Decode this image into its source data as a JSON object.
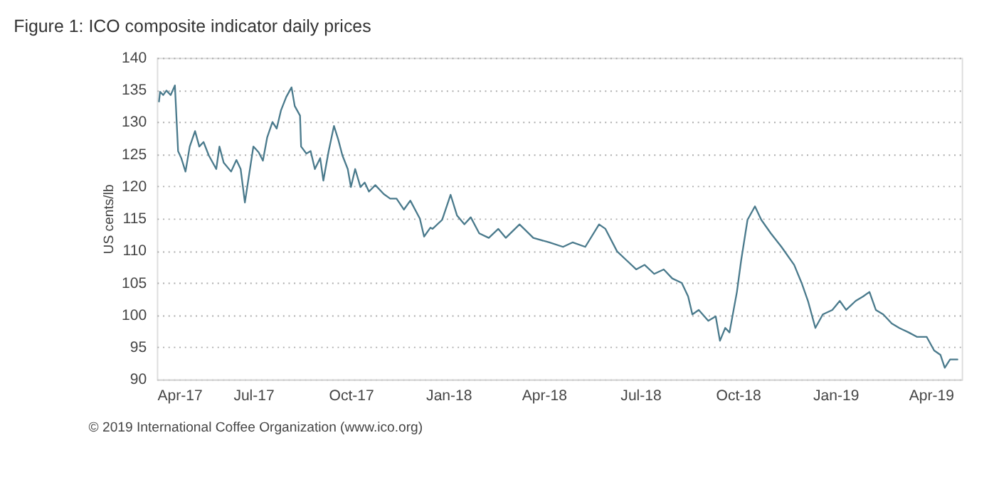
{
  "chart_data": {
    "type": "line",
    "title": "Figure 1: ICO composite indicator daily prices",
    "ylabel": "US cents/lb",
    "annotations": [
      "© 2019 International Coffee Organization (www.ico.org)"
    ],
    "x": [
      "2017-04-03",
      "2017-04-04",
      "2017-04-07",
      "2017-04-10",
      "2017-04-14",
      "2017-04-18",
      "2017-04-21",
      "2017-04-24",
      "2017-04-28",
      "2017-05-02",
      "2017-05-07",
      "2017-05-11",
      "2017-05-15",
      "2017-05-20",
      "2017-05-27",
      "2017-05-30",
      "2017-06-03",
      "2017-06-10",
      "2017-06-15",
      "2017-06-19",
      "2017-06-23",
      "2017-07-01",
      "2017-07-06",
      "2017-07-10",
      "2017-07-14",
      "2017-07-19",
      "2017-07-23",
      "2017-07-27",
      "2017-08-01",
      "2017-08-06",
      "2017-08-09",
      "2017-08-14",
      "2017-08-15",
      "2017-08-20",
      "2017-08-24",
      "2017-08-28",
      "2017-09-02",
      "2017-09-05",
      "2017-09-10",
      "2017-09-15",
      "2017-09-19",
      "2017-09-23",
      "2017-09-28",
      "2017-10-01",
      "2017-10-05",
      "2017-10-10",
      "2017-10-14",
      "2017-10-18",
      "2017-10-24",
      "2017-11-01",
      "2017-11-07",
      "2017-11-13",
      "2017-11-20",
      "2017-11-26",
      "2017-12-05",
      "2017-12-09",
      "2017-12-15",
      "2017-12-17",
      "2017-12-26",
      "2018-01-03",
      "2018-01-09",
      "2018-01-16",
      "2018-01-22",
      "2018-01-30",
      "2018-02-08",
      "2018-02-17",
      "2018-02-24",
      "2018-03-09",
      "2018-03-22",
      "2018-04-06",
      "2018-04-19",
      "2018-04-28",
      "2018-05-10",
      "2018-05-23",
      "2018-05-29",
      "2018-06-09",
      "2018-06-18",
      "2018-06-27",
      "2018-07-05",
      "2018-07-14",
      "2018-07-23",
      "2018-07-31",
      "2018-08-09",
      "2018-08-15",
      "2018-08-19",
      "2018-08-25",
      "2018-09-03",
      "2018-09-10",
      "2018-09-14",
      "2018-09-19",
      "2018-09-23",
      "2018-09-30",
      "2018-10-04",
      "2018-10-10",
      "2018-10-17",
      "2018-10-23",
      "2018-11-01",
      "2018-11-11",
      "2018-11-23",
      "2018-11-30",
      "2018-12-06",
      "2018-12-13",
      "2018-12-20",
      "2018-12-29",
      "2019-01-05",
      "2019-01-11",
      "2019-01-20",
      "2019-01-27",
      "2019-02-02",
      "2019-02-08",
      "2019-02-15",
      "2019-02-23",
      "2019-03-02",
      "2019-03-11",
      "2019-03-19",
      "2019-03-28",
      "2019-04-04",
      "2019-04-10",
      "2019-04-14",
      "2019-04-19",
      "2019-04-26"
    ],
    "series": [
      {
        "color": "#4a7a8c",
        "values": [
          133.2,
          134.7,
          134.2,
          134.9,
          134.2,
          135.7,
          125.5,
          124.4,
          122.3,
          126.2,
          128.6,
          126.2,
          126.9,
          124.8,
          122.7,
          126.2,
          123.7,
          122.3,
          124.1,
          122.7,
          117.5,
          126.2,
          125.3,
          124.0,
          127.6,
          130.0,
          129.0,
          131.8,
          133.9,
          135.4,
          132.5,
          131.0,
          126.2,
          125.1,
          125.5,
          122.7,
          124.4,
          120.9,
          125.5,
          129.4,
          127.3,
          124.8,
          122.7,
          119.9,
          122.7,
          119.9,
          120.6,
          119.2,
          120.2,
          118.8,
          118.1,
          118.1,
          116.4,
          117.8,
          115.0,
          112.2,
          113.6,
          113.4,
          114.8,
          118.7,
          115.5,
          114.1,
          115.2,
          112.7,
          112.0,
          113.4,
          112.0,
          114.1,
          112.0,
          111.3,
          110.6,
          111.3,
          110.6,
          114.1,
          113.4,
          109.9,
          108.5,
          107.1,
          107.8,
          106.4,
          107.1,
          105.7,
          105.0,
          102.9,
          100.1,
          100.8,
          99.1,
          99.8,
          96.0,
          98.0,
          97.3,
          103.6,
          108.5,
          114.8,
          116.9,
          114.8,
          112.7,
          110.6,
          107.8,
          105.0,
          102.2,
          98.0,
          100.1,
          100.8,
          102.2,
          100.8,
          102.2,
          102.9,
          103.6,
          100.8,
          100.1,
          98.7,
          98.0,
          97.3,
          96.6,
          96.6,
          94.5,
          93.8,
          91.8,
          93.1,
          93.1
        ]
      }
    ],
    "xlim": [
      "2017-04-01",
      "2019-04-30"
    ],
    "xticks": [
      {
        "value": "2017-04-01",
        "label": "Apr-17"
      },
      {
        "value": "2017-07-01",
        "label": "Jul-17"
      },
      {
        "value": "2017-10-01",
        "label": "Oct-17"
      },
      {
        "value": "2018-01-01",
        "label": "Jan-18"
      },
      {
        "value": "2018-04-01",
        "label": "Apr-18"
      },
      {
        "value": "2018-07-01",
        "label": "Jul-18"
      },
      {
        "value": "2018-10-01",
        "label": "Oct-18"
      },
      {
        "value": "2019-01-01",
        "label": "Jan-19"
      },
      {
        "value": "2019-04-01",
        "label": "Apr-19"
      }
    ],
    "ylim": [
      90,
      140
    ],
    "yticks": [
      90,
      95,
      100,
      105,
      110,
      115,
      120,
      125,
      130,
      135,
      140
    ],
    "grid": "y",
    "line_style": "solid",
    "marker": "none"
  }
}
